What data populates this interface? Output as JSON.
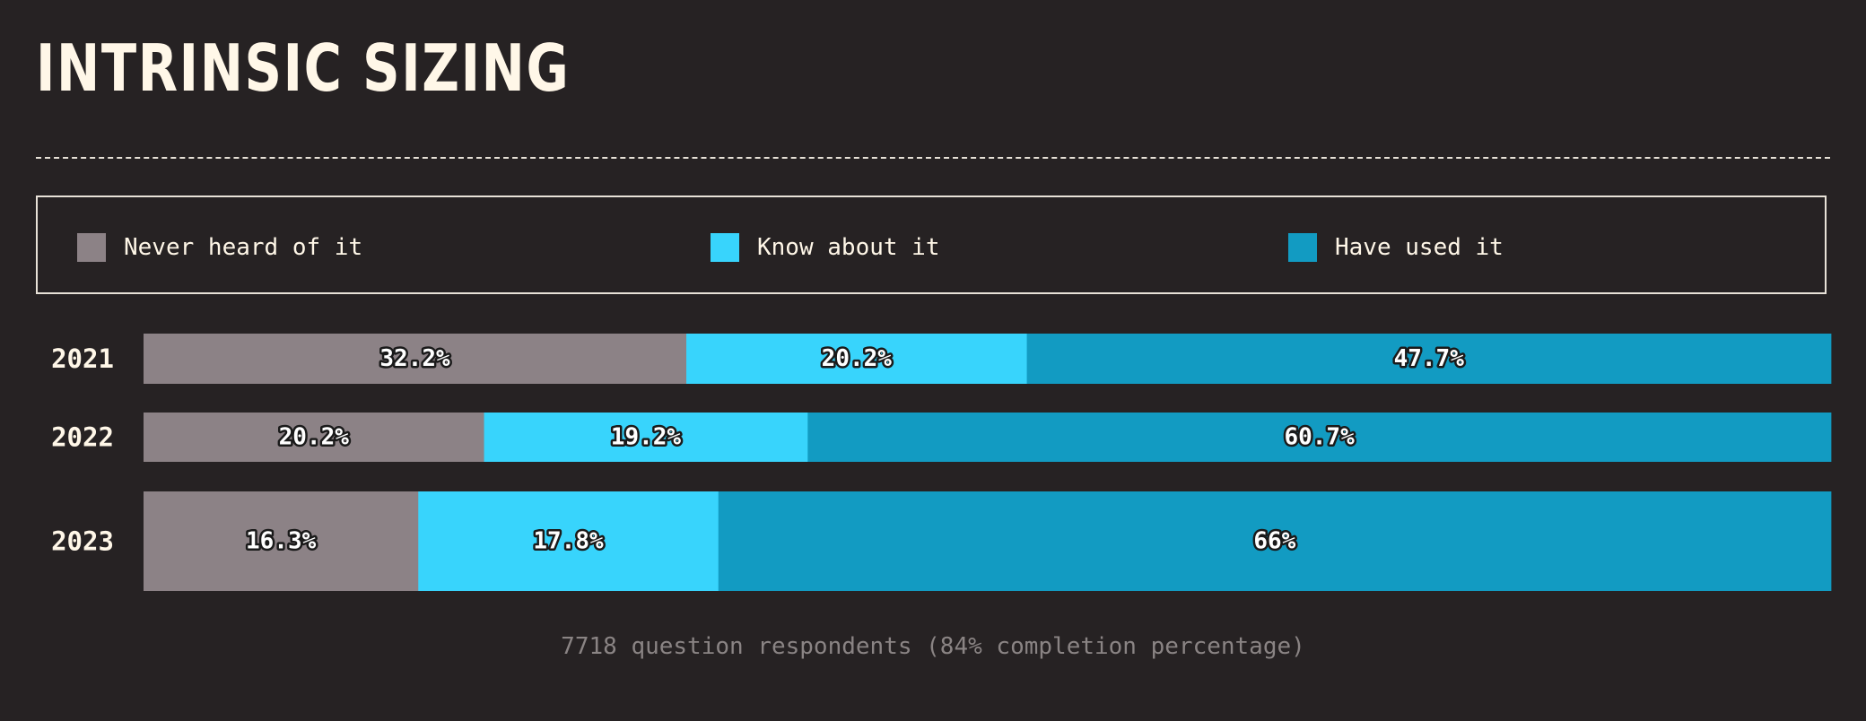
{
  "title": "INTRINSIC SIZING",
  "legend": {
    "items": [
      {
        "label": "Never heard of it",
        "color": "#8c8286"
      },
      {
        "label": "Know about it",
        "color": "#38d4fc"
      },
      {
        "label": "Have used it",
        "color": "#129bc2"
      }
    ]
  },
  "chart_data": {
    "type": "bar",
    "orientation": "horizontal",
    "stacked": true,
    "normalized_percent": true,
    "categories": [
      "2021",
      "2022",
      "2023"
    ],
    "series": [
      {
        "name": "Never heard of it",
        "color": "#8c8286",
        "values": [
          32.2,
          20.2,
          16.3
        ],
        "labels": [
          "32.2%",
          "20.2%",
          "16.3%"
        ]
      },
      {
        "name": "Know about it",
        "color": "#38d4fc",
        "values": [
          20.2,
          19.2,
          17.8
        ],
        "labels": [
          "20.2%",
          "19.2%",
          "17.8%"
        ]
      },
      {
        "name": "Have used it",
        "color": "#129bc2",
        "values": [
          47.7,
          60.7,
          66.0
        ],
        "labels": [
          "47.7%",
          "60.7%",
          "66%"
        ]
      }
    ],
    "xlim": [
      0,
      100
    ],
    "grid": false,
    "legend_position": "top"
  },
  "footer": "7718 question respondents (84% completion percentage)"
}
